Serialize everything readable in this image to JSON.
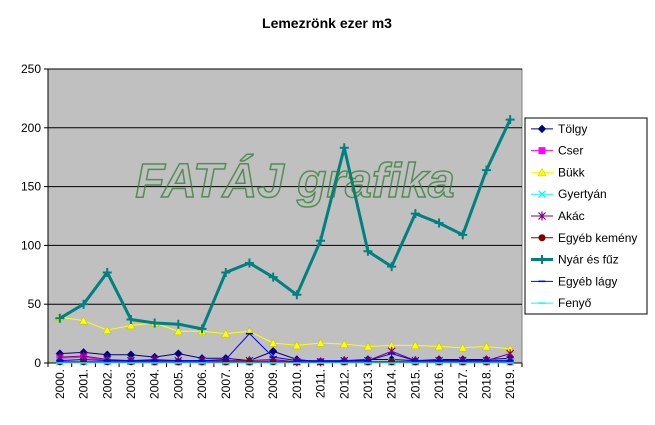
{
  "chart_data": {
    "type": "line",
    "title": "Lemezrönk ezer m3",
    "watermark": "FATÁJ grafika",
    "xlabel": "",
    "ylabel": "",
    "ylim": [
      0,
      250
    ],
    "yticks": [
      0,
      50,
      100,
      150,
      200,
      250
    ],
    "grid": "horizontal",
    "legend_position": "right",
    "plot_background": "#c0c0c0",
    "categories": [
      "2000.",
      "2001.",
      "2002.",
      "2003.",
      "2004.",
      "2005.",
      "2006.",
      "2007.",
      "2008.",
      "2009.",
      "2010.",
      "2011.",
      "2012.",
      "2013.",
      "2014.",
      "2015.",
      "2016.",
      "2017.",
      "2018.",
      "2019."
    ],
    "series": [
      {
        "name": "Tölgy",
        "color": "#000080",
        "marker": "diamond",
        "values": [
          8,
          9,
          7,
          7,
          5,
          8,
          4,
          4,
          2,
          10,
          3,
          1,
          2,
          3,
          3,
          2,
          3,
          3,
          3,
          4
        ]
      },
      {
        "name": "Cser",
        "color": "#ff00ff",
        "marker": "square",
        "values": [
          4,
          5,
          2,
          2,
          1,
          1,
          1,
          1,
          1,
          2,
          1,
          1,
          1,
          1,
          1,
          1,
          1,
          1,
          1,
          1
        ]
      },
      {
        "name": "Bükk",
        "color": "#ffff00",
        "marker": "triangle",
        "values": [
          39,
          36,
          28,
          32,
          34,
          27,
          27,
          25,
          27,
          17,
          15,
          17,
          16,
          14,
          15,
          15,
          14,
          13,
          14,
          12
        ]
      },
      {
        "name": "Gyertyán",
        "color": "#00ffff",
        "marker": "x",
        "values": [
          1,
          1,
          1,
          1,
          1,
          1,
          1,
          1,
          1,
          1,
          1,
          1,
          1,
          1,
          1,
          1,
          1,
          1,
          1,
          1
        ]
      },
      {
        "name": "Akác",
        "color": "#800080",
        "marker": "star",
        "values": [
          5,
          6,
          3,
          2,
          3,
          2,
          2,
          2,
          2,
          3,
          1,
          1,
          2,
          2,
          10,
          2,
          2,
          2,
          2,
          8
        ]
      },
      {
        "name": "Egyéb kemény",
        "color": "#800000",
        "marker": "circle",
        "values": [
          1,
          1,
          1,
          1,
          1,
          1,
          1,
          1,
          1,
          1,
          1,
          1,
          1,
          1,
          1,
          1,
          1,
          1,
          1,
          1
        ]
      },
      {
        "name": "Nyár és fűz",
        "color": "#008080",
        "marker": "plus",
        "bold": true,
        "values": [
          38,
          50,
          77,
          37,
          34,
          33,
          29,
          77,
          85,
          73,
          58,
          104,
          183,
          95,
          82,
          127,
          119,
          109,
          164,
          207
        ]
      },
      {
        "name": "Egyéb lágy",
        "color": "#0000ff",
        "marker": "dash",
        "values": [
          2,
          3,
          2,
          2,
          2,
          2,
          2,
          3,
          25,
          5,
          2,
          2,
          2,
          2,
          8,
          2,
          2,
          2,
          2,
          2
        ]
      },
      {
        "name": "Fenyő",
        "color": "#00ffff",
        "marker": "dash",
        "values": [
          0,
          0,
          0,
          0,
          0,
          0,
          0,
          0,
          0,
          0,
          0,
          0,
          0,
          0,
          0,
          0,
          0,
          0,
          0,
          0
        ]
      }
    ]
  }
}
